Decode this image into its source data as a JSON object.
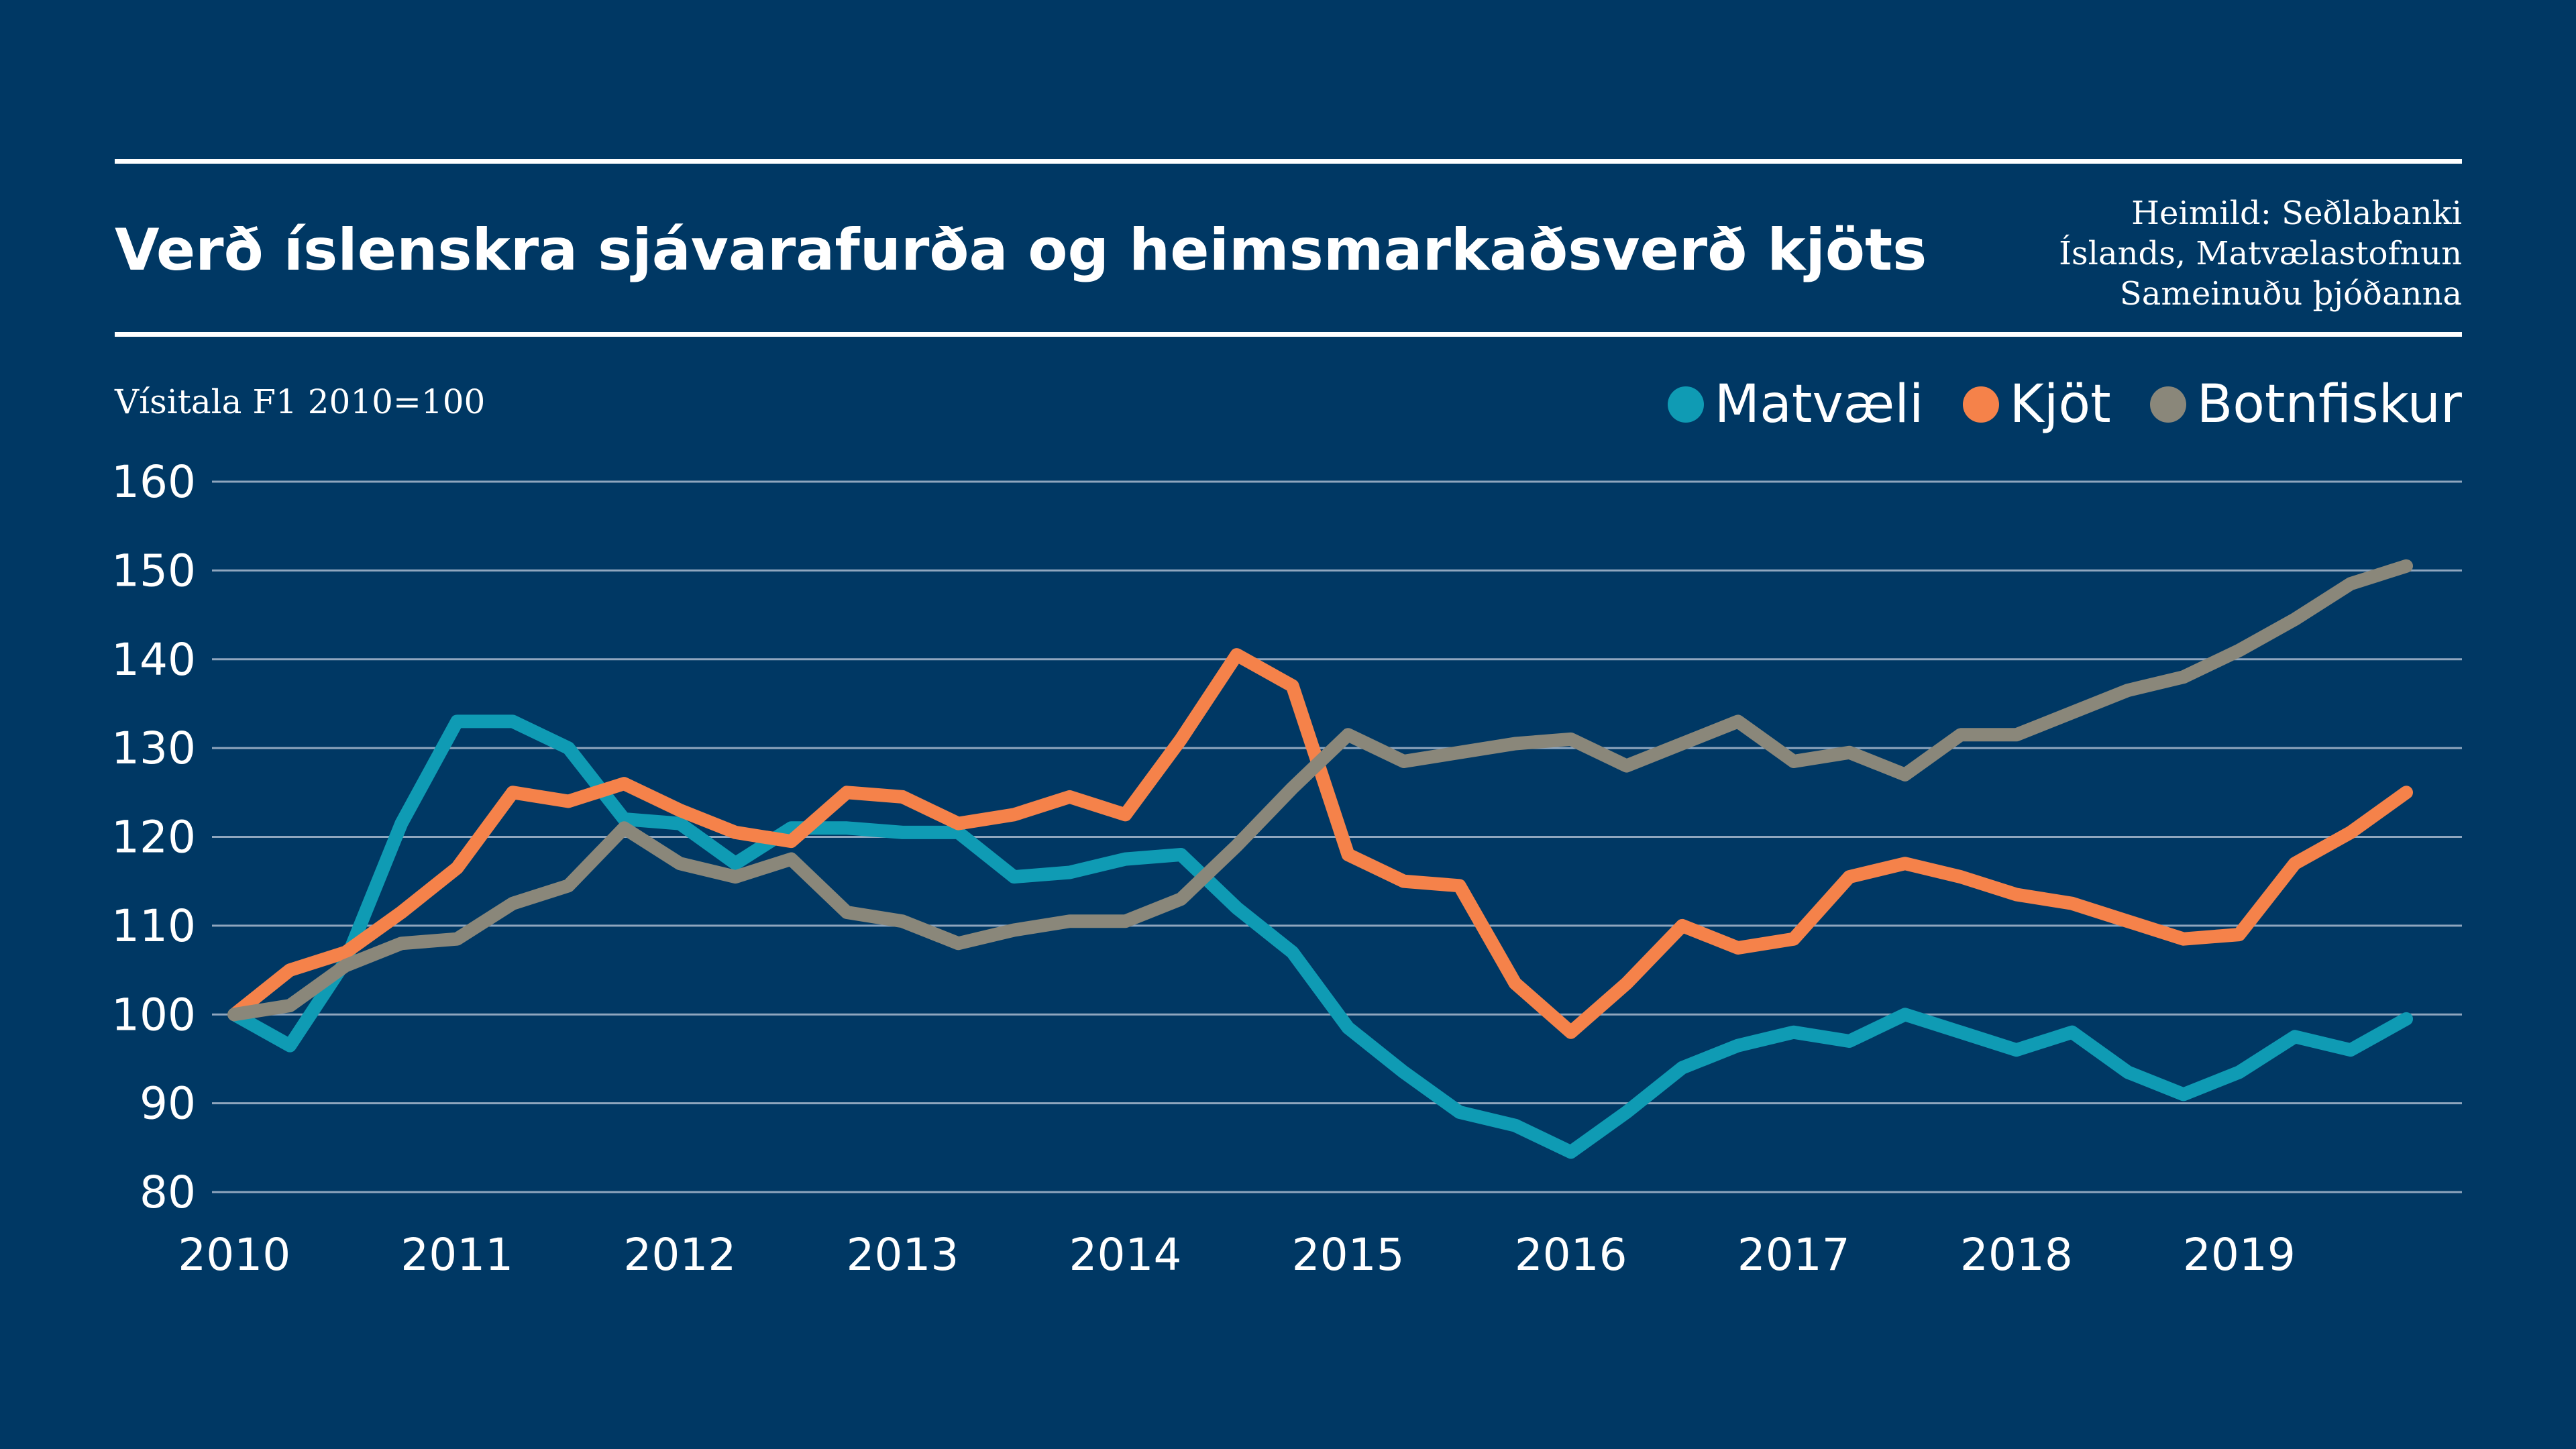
{
  "title": "Verð íslenskra sjávarafurða og heimsmarkaðsverð kjöts",
  "source": [
    "Heimild: Seðlabanki",
    "Íslands, Matvælastofnun",
    "Sameinuðu þjóðanna"
  ],
  "colors": {
    "background": "#003864",
    "grid": "#8fa6be"
  },
  "chart_data": {
    "type": "line",
    "title": "Verð íslenskra sjávarafurða og heimsmarkaðsverð kjöts",
    "ylabel": "Vísitala F1 2010=100",
    "xlabel": "",
    "ylim": [
      80,
      160
    ],
    "yticks": [
      80,
      90,
      100,
      110,
      120,
      130,
      140,
      150,
      160
    ],
    "xticks": [
      2010,
      2011,
      2012,
      2013,
      2014,
      2015,
      2016,
      2017,
      2018,
      2019
    ],
    "xlim": [
      2009.9,
      2020.0
    ],
    "grid": true,
    "legend_position": "top-right",
    "x": [
      2010.0,
      2010.25,
      2010.5,
      2010.75,
      2011.0,
      2011.25,
      2011.5,
      2011.75,
      2012.0,
      2012.25,
      2012.5,
      2012.75,
      2013.0,
      2013.25,
      2013.5,
      2013.75,
      2014.0,
      2014.25,
      2014.5,
      2014.75,
      2015.0,
      2015.25,
      2015.5,
      2015.75,
      2016.0,
      2016.25,
      2016.5,
      2016.75,
      2017.0,
      2017.25,
      2017.5,
      2017.75,
      2018.0,
      2018.25,
      2018.5,
      2018.75,
      2019.0,
      2019.25,
      2019.5,
      2019.75
    ],
    "series": [
      {
        "name": "Matvæli",
        "color": "#0f9bb4",
        "values": [
          100,
          96.5,
          106,
          121.5,
          133,
          133,
          130,
          122,
          121.5,
          117,
          121,
          121,
          120.5,
          120.5,
          115.5,
          116,
          117.5,
          118,
          112,
          107,
          98.5,
          93.5,
          89,
          87.5,
          84.5,
          89,
          94,
          96.5,
          98,
          97,
          100,
          98,
          96,
          98,
          93.5,
          91,
          93.5,
          97.5,
          96,
          99.5
        ]
      },
      {
        "name": "Kjöt",
        "color": "#f5824a",
        "values": [
          100,
          105,
          107,
          111.5,
          116.5,
          125,
          124,
          126,
          123,
          120.5,
          119.5,
          125,
          124.5,
          121.5,
          122.5,
          124.5,
          122.5,
          131,
          140.5,
          137,
          118,
          115,
          114.5,
          103.5,
          98,
          103.5,
          110,
          107.5,
          108.5,
          115.5,
          117,
          115.5,
          113.5,
          112.5,
          110.5,
          108.5,
          109,
          117,
          120.5,
          125
        ]
      },
      {
        "name": "Botnfiskur",
        "color": "#8a877a",
        "values": [
          100,
          101,
          105.5,
          108,
          108.5,
          112.5,
          114.5,
          121,
          117,
          115.5,
          117.5,
          111.5,
          110.5,
          108,
          109.5,
          110.5,
          110.5,
          113,
          119,
          125.5,
          131.5,
          128.5,
          129.5,
          130.5,
          131,
          128,
          130.5,
          133,
          128.5,
          129.5,
          127,
          131.5,
          131.5,
          134,
          136.5,
          138,
          141,
          144.5,
          148.5,
          150.5
        ]
      }
    ]
  }
}
